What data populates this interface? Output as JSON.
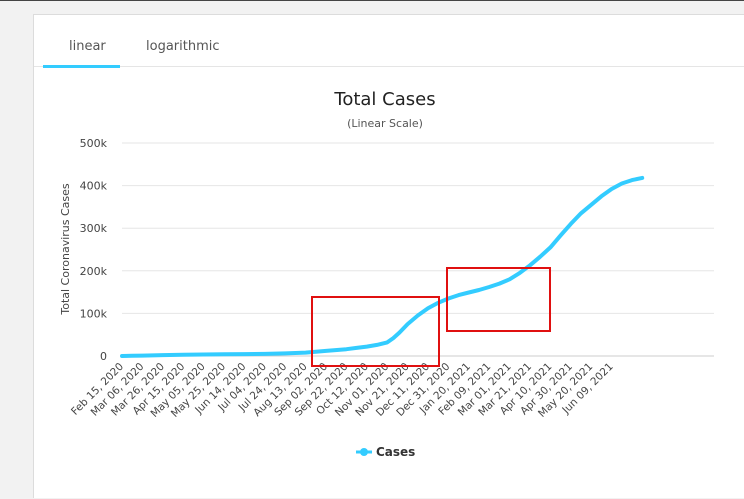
{
  "tabs": [
    {
      "label": "linear",
      "active": true
    },
    {
      "label": "logarithmic",
      "active": false
    }
  ],
  "chart_data": {
    "type": "line",
    "title": "Total Cases",
    "subtitle": "(Linear Scale)",
    "ylabel": "Total Coronavirus Cases",
    "xlabel": "",
    "ylim": [
      0,
      500000
    ],
    "yticks": [
      {
        "value": 0,
        "label": "0"
      },
      {
        "value": 100000,
        "label": "100k"
      },
      {
        "value": 200000,
        "label": "200k"
      },
      {
        "value": 300000,
        "label": "300k"
      },
      {
        "value": 400000,
        "label": "400k"
      },
      {
        "value": 500000,
        "label": "500k"
      }
    ],
    "xticks": [
      "Feb 15, 2020",
      "Mar 06, 2020",
      "Mar 26, 2020",
      "Apr 15, 2020",
      "May 05, 2020",
      "May 25, 2020",
      "Jun 14, 2020",
      "Jul 04, 2020",
      "Jul 24, 2020",
      "Aug 13, 2020",
      "Sep 02, 2020",
      "Sep 22, 2020",
      "Oct 12, 2020",
      "Nov 01, 2020",
      "Nov 21, 2020",
      "Dec 11, 2020",
      "Dec 31, 2020",
      "Jan 20, 2021",
      "Feb 09, 2021",
      "Mar 01, 2021",
      "Mar 21, 2021",
      "Apr 10, 2021",
      "Apr 30, 2021",
      "May 20, 2021",
      "Jun 09, 2021"
    ],
    "series": [
      {
        "name": "Cases",
        "color": "#33ccff",
        "x": [
          0,
          0.5,
          1,
          1.5,
          2,
          3,
          4,
          5,
          6,
          7,
          8,
          9,
          10,
          11,
          11.5,
          12,
          12.5,
          13,
          13.3,
          13.6,
          14,
          14.5,
          15,
          15.5,
          16,
          16.5,
          17,
          17.5,
          18,
          18.5,
          19,
          19.5,
          20,
          20.5,
          21,
          21.5,
          22,
          22.5,
          23,
          23.5,
          24,
          24.5,
          25,
          25.5
        ],
        "values": [
          0,
          500,
          1000,
          1500,
          2000,
          3000,
          3500,
          4000,
          4500,
          5000,
          6000,
          8000,
          12000,
          16000,
          19000,
          22000,
          26000,
          32000,
          42000,
          55000,
          75000,
          95000,
          112000,
          125000,
          135000,
          143000,
          149000,
          155000,
          162000,
          170000,
          180000,
          195000,
          213000,
          233000,
          255000,
          283000,
          310000,
          335000,
          355000,
          375000,
          392000,
          405000,
          413000,
          418000
        ]
      }
    ]
  },
  "legend": {
    "label": "Cases"
  }
}
